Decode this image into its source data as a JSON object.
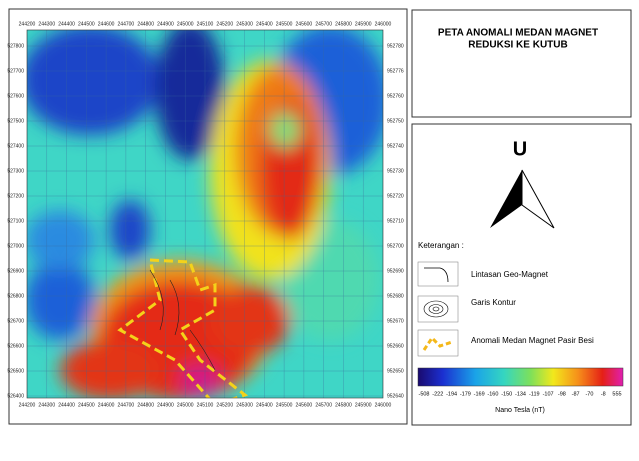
{
  "title": {
    "line1": "PETA ANOMALI MEDAN MAGNET",
    "line2": "REDUKSI KE KUTUB"
  },
  "north": "U",
  "legend": {
    "heading": "Keterangan :",
    "items": [
      "Lintasan Geo-Magnet",
      "Garis Kontur",
      "Anomali Medan Magnet Pasir Besi"
    ]
  },
  "colorbar": {
    "labels": [
      "-508",
      "-222",
      "-194",
      "-179",
      "-169",
      "-160",
      "-150",
      "-134",
      "-119",
      "-107",
      "-98",
      "-87",
      "-70",
      "-8",
      "555"
    ],
    "unit": "Nano Tesla (nT)"
  },
  "map": {
    "x_labels": [
      "244200",
      "244300",
      "244400",
      "244500",
      "244600",
      "244700",
      "244800",
      "244900",
      "245000",
      "245100",
      "245200",
      "245300",
      "245400",
      "245500",
      "245600",
      "245700",
      "245800",
      "245900",
      "246000"
    ],
    "y_labels_left": [
      "527800",
      "527700",
      "527600",
      "527500",
      "527400",
      "527300",
      "527200",
      "527100",
      "527000",
      "526900",
      "526800",
      "526700",
      "526600",
      "526500",
      "526400"
    ],
    "y_labels_right": [
      "952780",
      "952776",
      "952760",
      "952750",
      "952740",
      "952730",
      "952720",
      "952710",
      "952700",
      "952690",
      "952680",
      "952670",
      "952660",
      "952650",
      "952640"
    ]
  }
}
